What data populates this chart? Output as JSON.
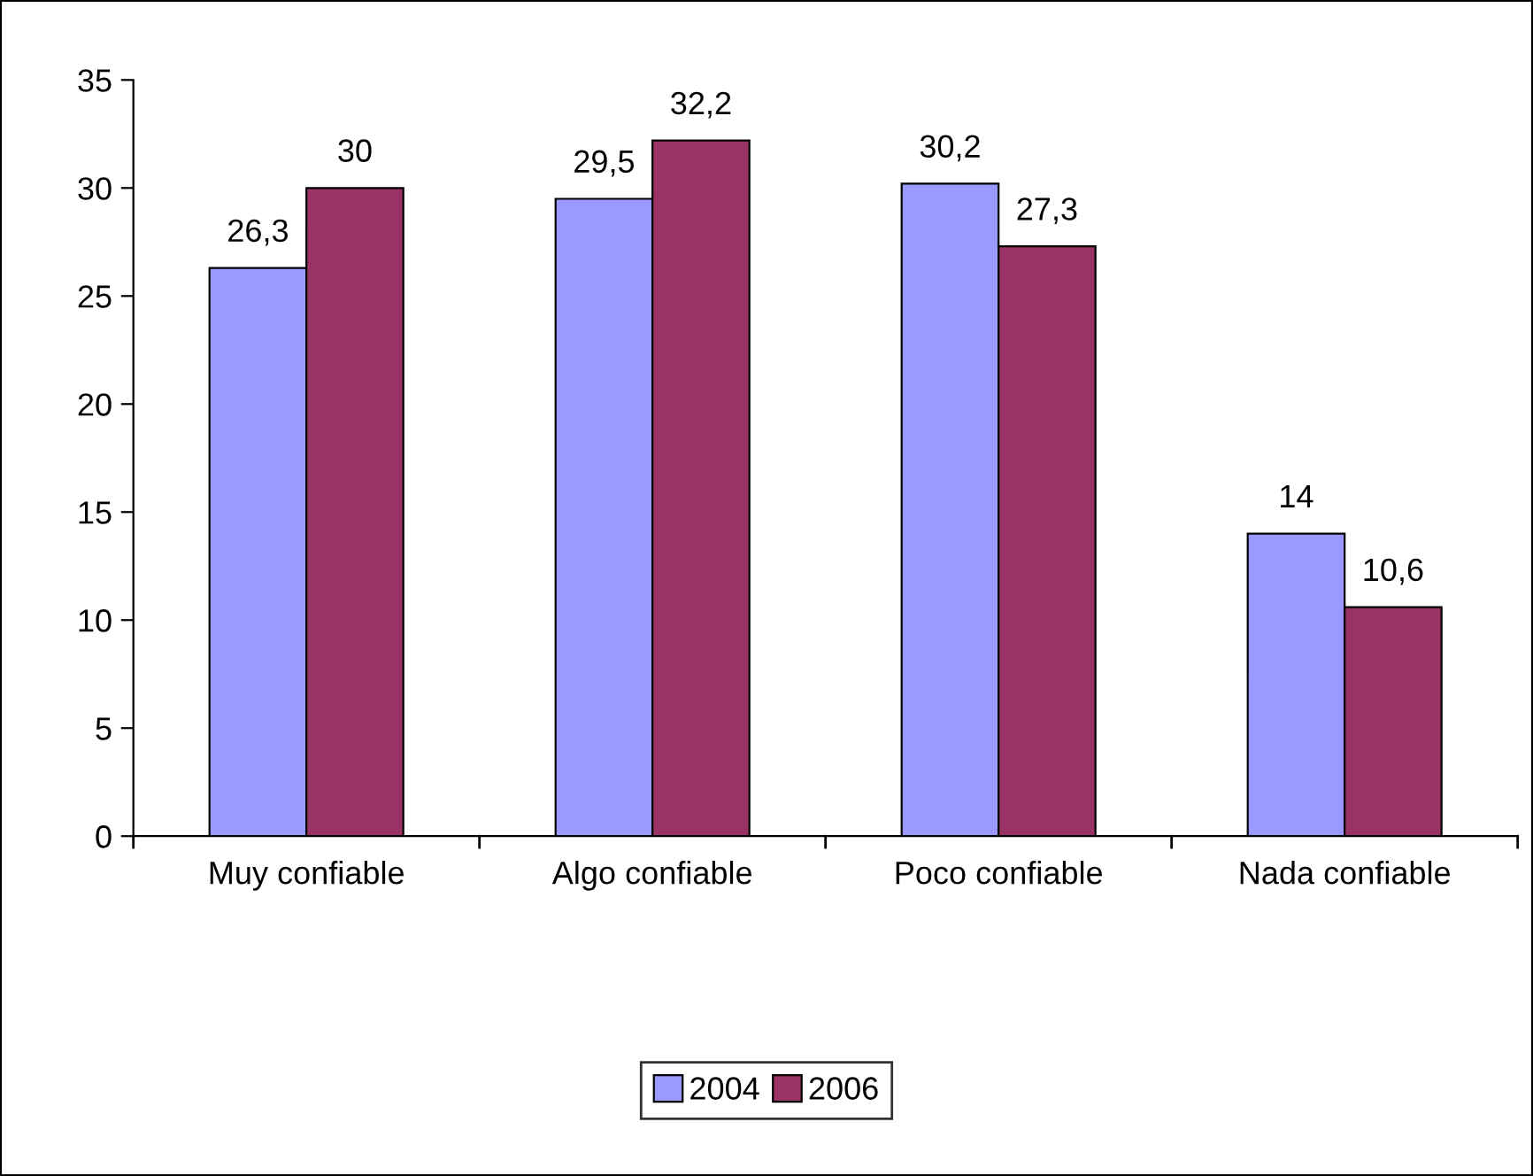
{
  "chart_data": {
    "type": "bar",
    "categories": [
      "Muy confiable",
      "Algo confiable",
      "Poco confiable",
      "Nada confiable"
    ],
    "series": [
      {
        "name": "2004",
        "color": "#9999ff",
        "values": [
          26.3,
          29.5,
          30.2,
          14
        ],
        "value_labels": [
          "26,3",
          "29,5",
          "30,2",
          "14"
        ]
      },
      {
        "name": "2006",
        "color": "#993366",
        "values": [
          30,
          32.2,
          27.3,
          10.6
        ],
        "value_labels": [
          "30",
          "32,2",
          "27,3",
          "10,6"
        ]
      }
    ],
    "ylim": [
      0,
      35
    ],
    "yticks": [
      0,
      5,
      10,
      15,
      20,
      25,
      30,
      35
    ],
    "grid": false,
    "legend": "bottom"
  }
}
